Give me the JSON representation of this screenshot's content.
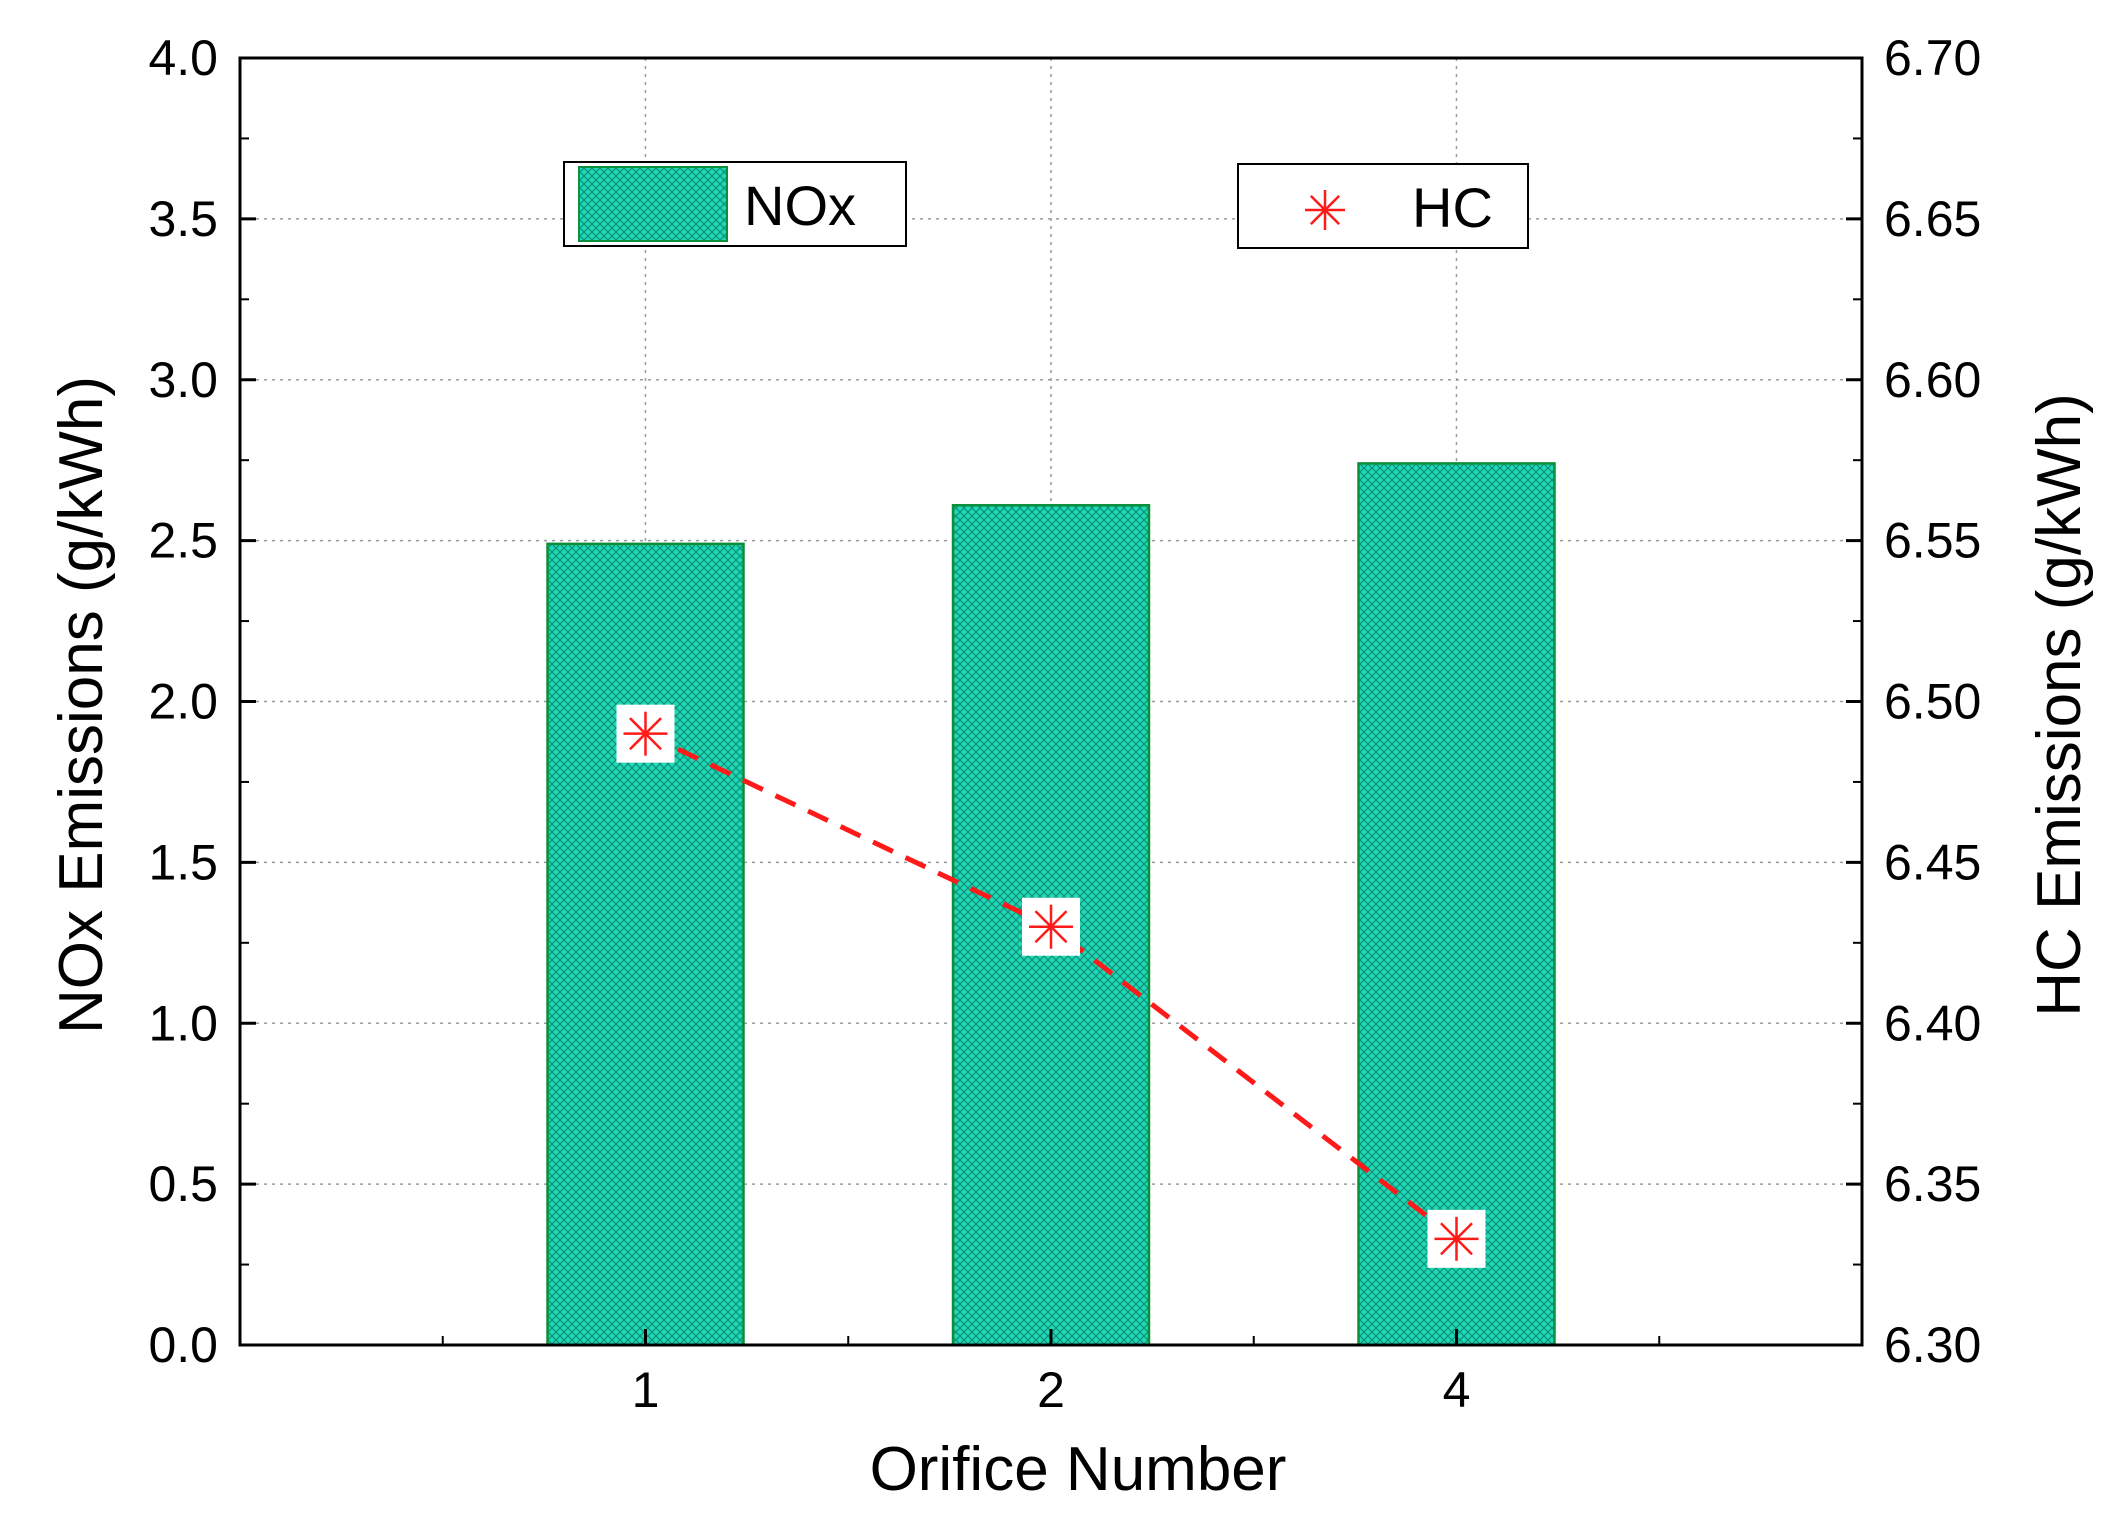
{
  "chart_data": {
    "type": "bar",
    "categories": [
      "1",
      "2",
      "4"
    ],
    "series": [
      {
        "name": "NOx",
        "axis": "left",
        "kind": "bar",
        "values": [
          2.49,
          2.61,
          2.74
        ],
        "color": "#1fd9b5"
      },
      {
        "name": "HC",
        "axis": "right",
        "kind": "line",
        "marker": "asterisk",
        "line_style": "dashed",
        "values": [
          6.49,
          6.43,
          6.333
        ],
        "color": "#ff1a1a"
      }
    ],
    "xlabel": "Orifice Number",
    "ylabel": "NOx Emissions (g/kWh)",
    "ylabel_right": "HC Emissions (g/kWh)",
    "ylim": [
      0,
      4
    ],
    "ylim_right": [
      6.3,
      6.7
    ],
    "yticks": [
      "0.0",
      "0.5",
      "1.0",
      "1.5",
      "2.0",
      "2.5",
      "3.0",
      "3.5",
      "4.0"
    ],
    "yticks_right": [
      "6.30",
      "6.35",
      "6.40",
      "6.45",
      "6.50",
      "6.55",
      "6.60",
      "6.65",
      "6.70"
    ],
    "grid": true,
    "legend": [
      {
        "label": "NOx",
        "placement": "top-left"
      },
      {
        "label": "HC",
        "placement": "top-right"
      }
    ]
  }
}
